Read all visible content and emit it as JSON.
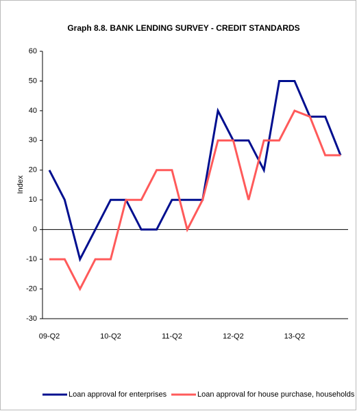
{
  "chart_data": {
    "type": "line",
    "title": "Graph 8.8. BANK LENDING SURVEY - CREDIT STANDARDS",
    "y_label": "Index",
    "categories": [
      "09-Q2",
      null,
      null,
      null,
      "10-Q2",
      null,
      null,
      null,
      "11-Q2",
      null,
      null,
      null,
      "12-Q2",
      null,
      null,
      null,
      "13-Q2",
      null,
      null,
      null
    ],
    "series": [
      {
        "name": "Loan approval for enterprises",
        "color": "#000f8f",
        "values": [
          20,
          10,
          -10,
          0,
          10,
          10,
          0,
          0,
          10,
          10,
          10,
          40,
          30,
          30,
          20,
          50,
          50,
          38,
          38,
          25
        ]
      },
      {
        "name": "Loan approval for house purchase, households",
        "color": "#ff5a5a",
        "values": [
          -10,
          -10,
          -20,
          -10,
          -10,
          10,
          10,
          20,
          20,
          0,
          10,
          30,
          30,
          10,
          30,
          30,
          40,
          38,
          25,
          25
        ]
      }
    ],
    "ylim": [
      -30,
      60
    ],
    "yticks": [
      -30,
      -20,
      -10,
      0,
      10,
      20,
      30,
      40,
      50,
      60
    ],
    "legend": "bottom"
  }
}
